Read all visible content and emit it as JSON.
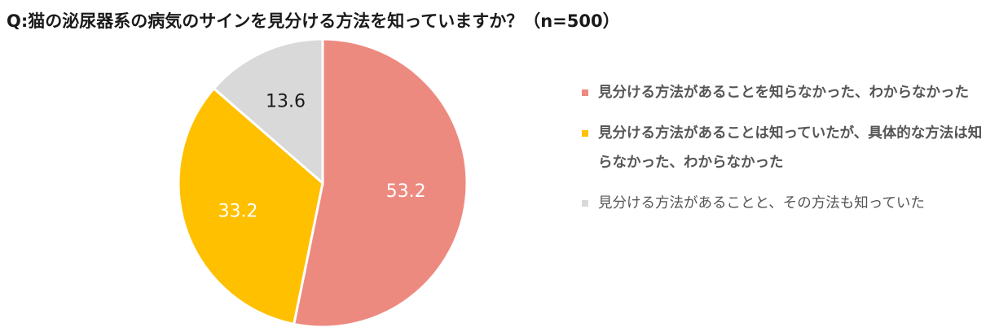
{
  "chart_data": {
    "type": "pie",
    "title": "Q:猫の泌尿器系の病気のサインを見分ける方法を知っていますか？（n=500）",
    "unit": "%",
    "start_angle_deg": 0,
    "direction": "clockwise",
    "slices": [
      {
        "label": "見分ける方法があることを知らなかった、わからなかった",
        "value": 53.2,
        "display": "53.2",
        "color": "#ED8A80",
        "label_color": "#ffffff"
      },
      {
        "label": "見分ける方法があることは知っていたが、具体的な方法は知らなかった、わからなかった",
        "value": 33.2,
        "display": "33.2",
        "color": "#FFC000",
        "label_color": "#ffffff"
      },
      {
        "label": "見分ける方法があることと、その方法も知っていた",
        "value": 13.6,
        "display": "13.6",
        "color": "#D9D9D9",
        "label_color": "#1a1a1a"
      }
    ],
    "legend_position": "right"
  }
}
